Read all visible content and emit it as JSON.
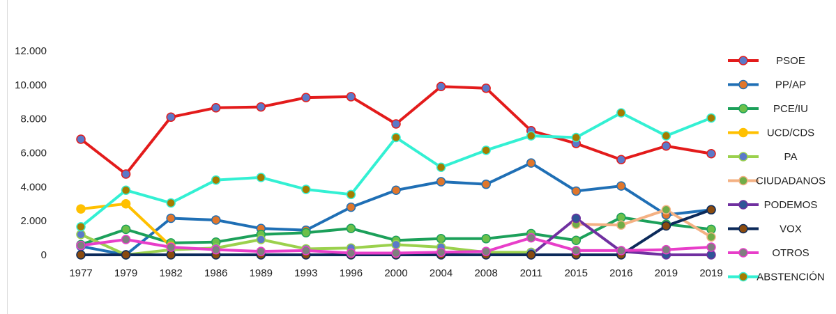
{
  "chart_data": {
    "type": "line",
    "title": "",
    "xlabel": "",
    "ylabel": "",
    "categories": [
      "1977",
      "1979",
      "1982",
      "1986",
      "1989",
      "1993",
      "1996",
      "2000",
      "2004",
      "2008",
      "2011",
      "2015",
      "2016",
      "2019",
      "2019"
    ],
    "yticks": [
      "0",
      "2.000",
      "4.000",
      "6.000",
      "8.000",
      "10.000",
      "12.000"
    ],
    "ylim": [
      0,
      12000
    ],
    "grid": false,
    "legend_position": "right",
    "series": [
      {
        "name": "PSOE",
        "line_color": "#e31b1b",
        "marker_color": "#5b79c9",
        "values": [
          6800,
          4750,
          8100,
          8650,
          8700,
          9250,
          9300,
          7700,
          9900,
          9800,
          7300,
          6550,
          5600,
          6400,
          5950
        ]
      },
      {
        "name": "PP/AP",
        "line_color": "#1f6fb5",
        "marker_color": "#e0762b",
        "values": [
          500,
          0,
          2150,
          2050,
          1550,
          1450,
          2800,
          3800,
          4300,
          4150,
          5400,
          3750,
          4050,
          2350,
          2650
        ]
      },
      {
        "name": "PCE/IU",
        "line_color": "#1ca05a",
        "marker_color": "#6cc04a",
        "values": [
          600,
          1500,
          700,
          750,
          1200,
          1300,
          1550,
          850,
          950,
          950,
          1250,
          850,
          2200,
          1800,
          1500
        ]
      },
      {
        "name": "UCD/CDS",
        "line_color": "#ffc000",
        "marker_color": "#ffc000",
        "values": [
          2700,
          3000,
          500,
          null,
          null,
          null,
          null,
          null,
          null,
          null,
          null,
          null,
          null,
          null,
          null
        ]
      },
      {
        "name": "PA",
        "line_color": "#9bd14d",
        "marker_color": "#5b79c9",
        "values": [
          1200,
          0,
          300,
          400,
          900,
          350,
          400,
          600,
          450,
          150,
          150,
          null,
          null,
          null,
          null
        ]
      },
      {
        "name": "CIUDADANOS",
        "line_color": "#f4b183",
        "marker_color": "#70ad47",
        "values": [
          null,
          null,
          null,
          null,
          null,
          null,
          null,
          null,
          null,
          null,
          null,
          1800,
          1750,
          2650,
          1050
        ]
      },
      {
        "name": "PODEMOS",
        "line_color": "#7030a0",
        "marker_color": "#2f5597",
        "values": [
          null,
          null,
          null,
          null,
          null,
          null,
          null,
          null,
          null,
          null,
          0,
          2150,
          200,
          0,
          0
        ]
      },
      {
        "name": "VOX",
        "line_color": "#0c2a5a",
        "marker_color": "#8a4b0f",
        "values": [
          0,
          0,
          0,
          0,
          0,
          0,
          0,
          0,
          0,
          0,
          0,
          0,
          0,
          1700,
          2650
        ]
      },
      {
        "name": "OTROS",
        "line_color": "#e83ec9",
        "marker_color": "#7f7f7f",
        "values": [
          550,
          900,
          450,
          300,
          200,
          250,
          100,
          100,
          150,
          200,
          1000,
          250,
          250,
          300,
          450
        ]
      },
      {
        "name": "ABSTENCIÓN",
        "line_color": "#33f0d3",
        "marker_color": "#a57c00",
        "values": [
          1650,
          3800,
          3050,
          4400,
          4550,
          3850,
          3550,
          6900,
          5150,
          6150,
          7000,
          6900,
          8350,
          7000,
          8050
        ]
      }
    ]
  }
}
